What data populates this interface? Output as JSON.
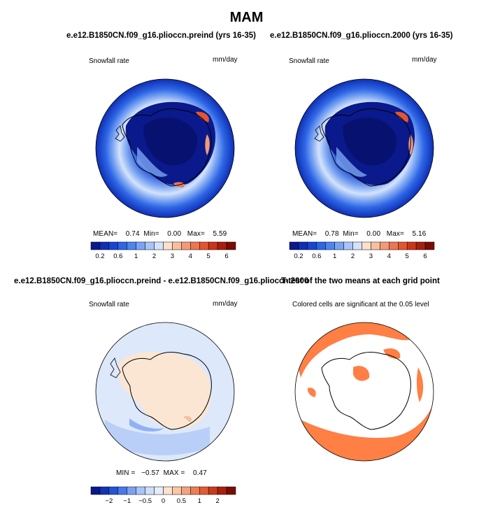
{
  "page": {
    "title": "MAM"
  },
  "panels": {
    "top_left": {
      "title": "e.e12.B1850CN.f09_g16.plioccn.preind (yrs 16-35)",
      "variable": "Snowfall rate",
      "units": "mm/day",
      "stats": {
        "mean_label": "MEAN=",
        "mean": "0.74",
        "min_label": "Min=",
        "min": "0.00",
        "max_label": "Max=",
        "max": "5.59"
      }
    },
    "top_right": {
      "title": "e.e12.B1850CN.f09_g16.plioccn.2000 (yrs 16-35)",
      "variable": "Snowfall rate",
      "units": "mm/day",
      "stats": {
        "mean_label": "MEAN=",
        "mean": "0.78",
        "min_label": "Min=",
        "min": "0.00",
        "max_label": "Max=",
        "max": "5.16"
      }
    },
    "bottom_left": {
      "title": "e.e12.B1850CN.f09_g16.plioccn.preind - e.e12.B1850CN.f09_g16.plioccn.2000",
      "variable": "Snowfall rate",
      "units": "mm/day",
      "stats": {
        "min_label": "MIN =",
        "min": "−0.57",
        "max_label": "MAX =",
        "max": "0.47"
      }
    },
    "bottom_right": {
      "title": "T-test of the two means at each grid point",
      "subtitle": "Colored cells are significant at the 0.05 level"
    }
  },
  "chart_data": [
    {
      "type": "heatmap",
      "title": "e.e12.B1850CN.f09_g16.plioccn.preind (yrs 16-35)",
      "variable": "Snowfall rate",
      "units": "mm/day",
      "projection": "south polar stereographic",
      "mean": 0.74,
      "min": 0.0,
      "max": 5.59,
      "colorbar": {
        "tick_labels": [
          "0.2",
          "0.6",
          "1",
          "2",
          "3",
          "4",
          "5",
          "6"
        ],
        "n_boxes": 16,
        "placement": "bottom"
      }
    },
    {
      "type": "heatmap",
      "title": "e.e12.B1850CN.f09_g16.plioccn.2000 (yrs 16-35)",
      "variable": "Snowfall rate",
      "units": "mm/day",
      "projection": "south polar stereographic",
      "mean": 0.78,
      "min": 0.0,
      "max": 5.16,
      "colorbar": {
        "tick_labels": [
          "0.2",
          "0.6",
          "1",
          "2",
          "3",
          "4",
          "5",
          "6"
        ],
        "n_boxes": 16,
        "placement": "bottom"
      }
    },
    {
      "type": "heatmap",
      "title": "e.e12.B1850CN.f09_g16.plioccn.preind - e.e12.B1850CN.f09_g16.plioccn.2000",
      "variable": "Snowfall rate",
      "units": "mm/day",
      "projection": "south polar stereographic",
      "min": -0.57,
      "max": 0.47,
      "colorbar": {
        "tick_labels": [
          "−2",
          "−1",
          "−0.5",
          "0",
          "0.5",
          "1",
          "2"
        ],
        "n_boxes": 16,
        "placement": "bottom"
      }
    },
    {
      "type": "heatmap",
      "title": "T-test of the two means at each grid point",
      "subtitle": "Colored cells are significant at the 0.05 level",
      "projection": "south polar stereographic",
      "significance_level": 0.05,
      "significant_color": "#ff7f45"
    }
  ],
  "colors": {
    "abs_scale": [
      "#0a1a8c",
      "#0f2fb4",
      "#1846d2",
      "#2d66e6",
      "#4d84ee",
      "#7aa4f2",
      "#a9c5f7",
      "#d4e3fb",
      "#fbe0cb",
      "#f6c0a0",
      "#f29b78",
      "#ec7750",
      "#e25530",
      "#cc3518",
      "#a81e0c",
      "#7a0c04"
    ],
    "diff_scale": [
      "#08198c",
      "#1233b3",
      "#2553d6",
      "#4b78ea",
      "#7da1f1",
      "#a9c4f7",
      "#cddff9",
      "#e4edfb",
      "#fbe3cf",
      "#f7c7a6",
      "#f2a37e",
      "#ec7e56",
      "#e25a32",
      "#cc3a1a",
      "#a9200c",
      "#7a0c04"
    ],
    "significant": "#ff7f45"
  }
}
